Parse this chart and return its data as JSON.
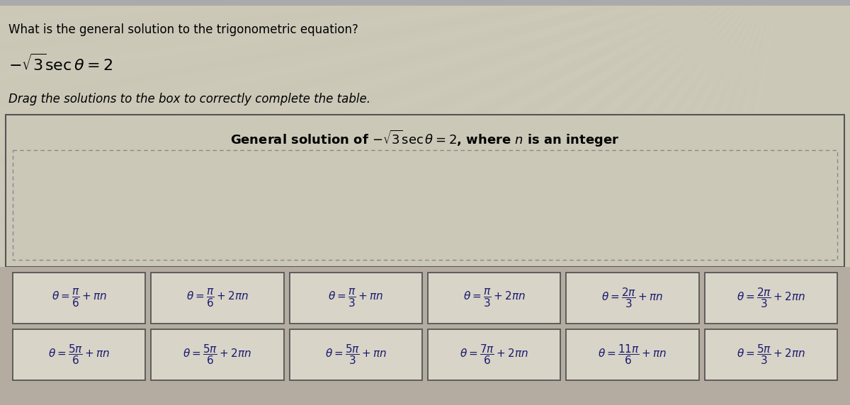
{
  "bg_color_top": "#d4cfc0",
  "bg_color_main": "#c8c0b0",
  "header_text1": "What is the general solution to the trigonometric equation?",
  "header_eq": "$-\\sqrt{3}\\sec\\theta = 2$",
  "header_text3": "Drag the solutions to the box to correctly complete the table.",
  "table_title": "General solution of $-\\sqrt{3}\\sec\\theta = 2$, where $n$ is an integer",
  "table_bg": "#c8c0b0",
  "table_border_color": "#555555",
  "dashed_border_color": "#777777",
  "card_bg": "#d8d4c8",
  "card_border_color": "#555555",
  "card_text_color": "#1a1a6e",
  "strip_bg": "#b0a898",
  "row1": [
    "$\\theta = \\dfrac{\\pi}{6} + \\pi n$",
    "$\\theta = \\dfrac{\\pi}{6} + 2\\pi n$",
    "$\\theta = \\dfrac{\\pi}{3} + \\pi n$",
    "$\\theta = \\dfrac{\\pi}{3} + 2\\pi n$",
    "$\\theta = \\dfrac{2\\pi}{3} + \\pi n$",
    "$\\theta = \\dfrac{2\\pi}{3} + 2\\pi n$"
  ],
  "row2": [
    "$\\theta = \\dfrac{5\\pi}{6} + \\pi n$",
    "$\\theta = \\dfrac{5\\pi}{6} + 2\\pi n$",
    "$\\theta = \\dfrac{5\\pi}{3} + \\pi n$",
    "$\\theta = \\dfrac{7\\pi}{6} + 2\\pi n$",
    "$\\theta = \\dfrac{11\\pi}{6} + \\pi n$",
    "$\\theta = \\dfrac{5\\pi}{3} + 2\\pi n$"
  ]
}
